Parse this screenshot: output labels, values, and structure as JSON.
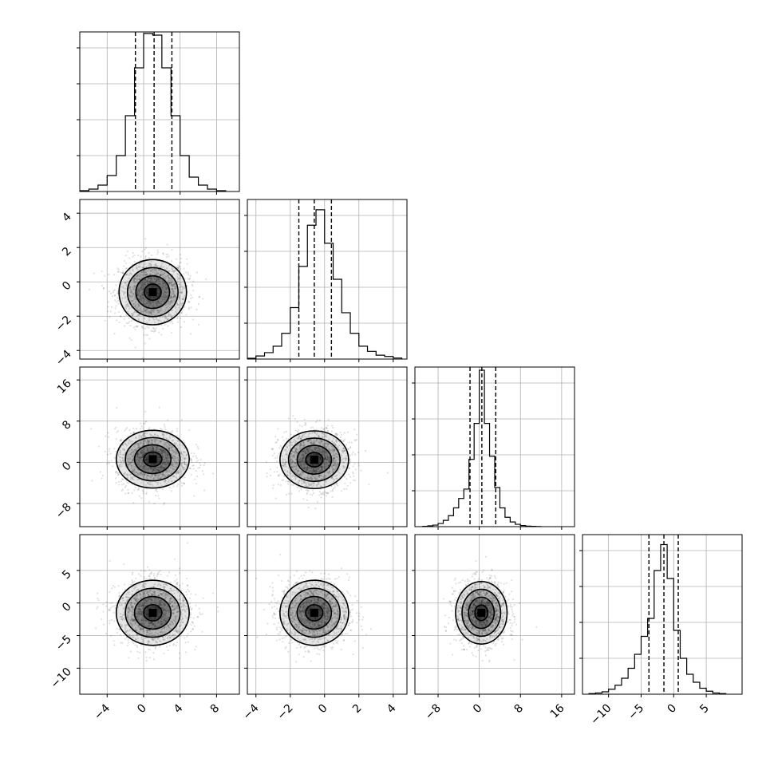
{
  "chart_data": {
    "type": "corner",
    "title": "",
    "grid": true,
    "n_params": 4,
    "params": [
      {
        "range": [
          -7,
          10.5
        ],
        "ticks": [
          -4,
          0,
          4,
          8
        ],
        "tick_labels": [
          "−4",
          "0",
          "4",
          "8"
        ],
        "quantiles": [
          -0.9,
          1.15,
          3.1
        ],
        "hist_bins": [
          -6.5,
          -5.5,
          -4.5,
          -3.5,
          -2.5,
          -1.5,
          -0.5,
          0.5,
          1.5,
          2.5,
          3.5,
          4.5,
          5.5,
          6.5,
          7.5,
          8.5
        ],
        "hist_values": [
          1,
          3,
          8,
          20,
          45,
          95,
          155,
          198,
          196,
          155,
          95,
          45,
          18,
          8,
          3,
          1
        ],
        "hist_max": 200,
        "center": [
          1.1
        ]
      },
      {
        "range": [
          -4.5,
          4.8
        ],
        "ticks": [
          -4,
          -2,
          0,
          2,
          4
        ],
        "tick_labels": [
          "−4",
          "−2",
          "0",
          "2",
          "4"
        ],
        "quantiles": [
          -1.5,
          -0.6,
          0.4
        ],
        "hist_bins": [
          -4.25,
          -3.75,
          -3.25,
          -2.75,
          -2.25,
          -1.75,
          -1.25,
          -0.75,
          -0.25,
          0.25,
          0.75,
          1.25,
          1.75,
          2.25,
          2.75,
          3.25,
          3.75,
          4.25
        ],
        "hist_values": [
          0.3,
          1.2,
          2.5,
          5,
          10,
          20,
          36,
          52,
          58,
          45,
          31,
          18,
          10,
          5,
          3,
          1.5,
          1,
          0.4
        ],
        "hist_max": 62,
        "center": [
          -0.6
        ]
      },
      {
        "range": [
          -12.5,
          18.5
        ],
        "ticks": [
          -8,
          0,
          8,
          16
        ],
        "tick_labels": [
          "−8",
          "0",
          "8",
          "16"
        ],
        "quantiles": [
          -1.8,
          0.5,
          3.2
        ],
        "hist_bins": [
          -10.5,
          -9.5,
          -8.5,
          -7.5,
          -6.5,
          -5.5,
          -4.5,
          -3.5,
          -2.5,
          -1.5,
          -0.5,
          0.5,
          1.5,
          2.5,
          3.5,
          4.5,
          5.5,
          6.5,
          7.5,
          8.5,
          9.5,
          10.5,
          11.5
        ],
        "hist_values": [
          0.2,
          0.5,
          1,
          2,
          4,
          7,
          12,
          18,
          24,
          43,
          66,
          100,
          66,
          45,
          25,
          12,
          6,
          3,
          1.5,
          0.7,
          0.3,
          0.2,
          0.1
        ],
        "hist_max": 102,
        "center": [
          0.5
        ]
      },
      {
        "range": [
          -14,
          10.5
        ],
        "ticks": [
          -10,
          -5,
          0,
          5
        ],
        "tick_labels": [
          "−10",
          "−5",
          "0",
          "5"
        ],
        "quantiles": [
          -3.8,
          -1.5,
          0.7
        ],
        "hist_bins": [
          -12.5,
          -11.5,
          -10.5,
          -9.5,
          -8.5,
          -7.5,
          -6.5,
          -5.5,
          -4.5,
          -3.5,
          -2.5,
          -1.5,
          -0.5,
          0.5,
          1.5,
          2.5,
          3.5,
          4.5,
          5.5,
          6.5,
          7.5
        ],
        "hist_values": [
          0.3,
          0.6,
          1.2,
          2.5,
          4.5,
          8,
          13,
          20,
          29,
          38,
          62,
          75,
          58,
          32,
          18,
          10,
          6,
          3,
          1.5,
          0.6,
          0.3
        ],
        "hist_max": 80,
        "center": [
          -1.5
        ]
      }
    ],
    "pairs": [
      {
        "row": 1,
        "col": 0,
        "center": [
          1.0,
          -0.6
        ],
        "sigma": [
          1.85,
          0.95
        ]
      },
      {
        "row": 2,
        "col": 0,
        "center": [
          1.0,
          0.6
        ],
        "sigma": [
          2.0,
          2.8
        ]
      },
      {
        "row": 2,
        "col": 1,
        "center": [
          -0.6,
          0.5
        ],
        "sigma": [
          1.0,
          2.8
        ]
      },
      {
        "row": 3,
        "col": 0,
        "center": [
          1.0,
          -1.5
        ],
        "sigma": [
          2.0,
          2.5
        ]
      },
      {
        "row": 3,
        "col": 1,
        "center": [
          -0.6,
          -1.5
        ],
        "sigma": [
          1.0,
          2.5
        ]
      },
      {
        "row": 3,
        "col": 2,
        "center": [
          0.4,
          -1.5
        ],
        "sigma": [
          2.5,
          2.4
        ]
      }
    ],
    "contour_levels_sigma": [
      0.5,
      1.0,
      1.5,
      2.0
    ]
  },
  "colors": {
    "axis": "#000000",
    "grid": "#b0b0b0",
    "points": "#000000",
    "contour": "#000000"
  }
}
